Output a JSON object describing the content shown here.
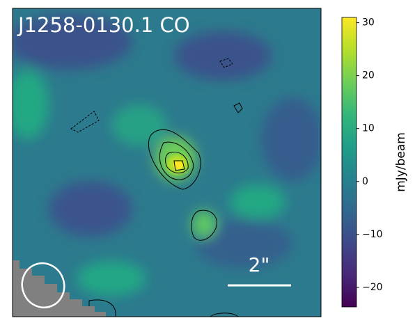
{
  "chart_data": {
    "type": "image",
    "title": "J1258-0130.1 CO",
    "annotation": "2\"",
    "colorbar": {
      "label": "mJy/beam",
      "lim": [
        -23.7,
        31
      ],
      "ticks": [
        {
          "value": -20,
          "label": "−20"
        },
        {
          "value": -10,
          "label": "−10"
        },
        0,
        10,
        20,
        30
      ],
      "colors": [
        "#440154",
        "#482878",
        "#3e4989",
        "#31688e",
        "#26828e",
        "#1f9e89",
        "#35b779",
        "#6ece58",
        "#b5de2b",
        "#fde725"
      ]
    }
  }
}
